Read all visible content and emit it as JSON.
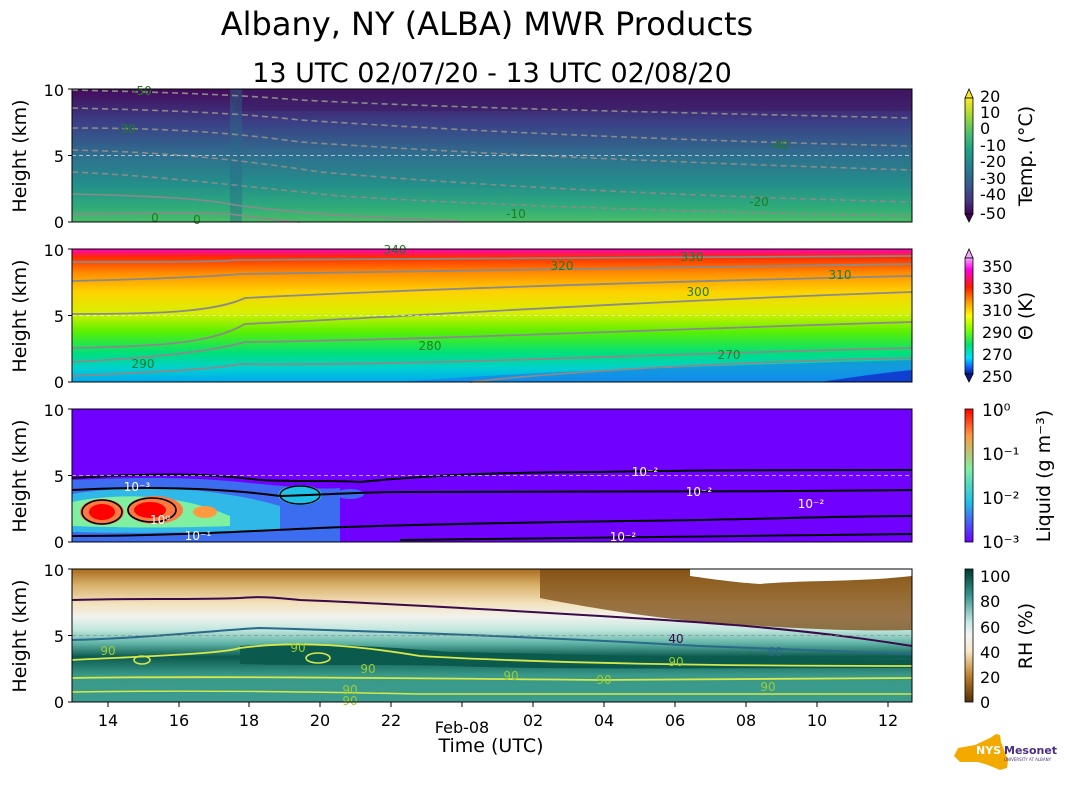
{
  "title": "Albany, NY (ALBA) MWR Products",
  "subtitle": "13 UTC 02/07/20 - 13 UTC 02/08/20",
  "xlabel": "Time (UTC)",
  "logo": {
    "name": "NYS Mesonet",
    "text_main": "NYS",
    "text_side": "Mesonet",
    "text_sub": "UNIVERSITY AT ALBANY",
    "color_state": "#f2a900",
    "color_text": "#4b2e83"
  },
  "chart_data": [
    {
      "type": "heatmap",
      "name": "temperature",
      "ylabel": "Height (km)",
      "xlim": [
        "13 UTC",
        "12:40 UTC"
      ],
      "ylim": [
        0,
        10
      ],
      "yticks": [
        "0",
        "5",
        "10"
      ],
      "xticks": [
        "14",
        "16",
        "18",
        "20",
        "22",
        "02",
        "04",
        "06",
        "08",
        "10",
        "12"
      ],
      "date_label": "Feb-08",
      "colorbar": {
        "label": "Temp. (°C)",
        "range": [
          -50,
          20
        ],
        "ticks": [
          "20",
          "10",
          "0",
          "-10",
          "-20",
          "-30",
          "-40",
          "-50"
        ],
        "colormap": "viridis"
      },
      "contour_labels": [
        "-50",
        "-30",
        "0",
        "0",
        "-10",
        "-20",
        "-40"
      ],
      "grid": "dashed line at 5 km"
    },
    {
      "type": "heatmap",
      "name": "potential_temperature",
      "ylabel": "Height (km)",
      "ylim": [
        0,
        10
      ],
      "yticks": [
        "0",
        "5",
        "10"
      ],
      "colorbar": {
        "label": "Θ (K)",
        "range": [
          250,
          360
        ],
        "ticks": [
          "350",
          "330",
          "310",
          "290",
          "270",
          "250"
        ],
        "colormap": "gist_ncar"
      },
      "contour_labels": [
        "290",
        "280",
        "270",
        "300",
        "310",
        "320",
        "330",
        "340"
      ],
      "grid": "dashed line at 5 km"
    },
    {
      "type": "heatmap",
      "name": "liquid_water",
      "ylabel": "Height (km)",
      "ylim": [
        0,
        10
      ],
      "yticks": [
        "0",
        "5",
        "10"
      ],
      "colorbar": {
        "label": "Liquid (g m⁻³)",
        "range": [
          0.001,
          1
        ],
        "scale": "log",
        "ticks": [
          "10⁰",
          "10⁻¹",
          "10⁻²",
          "10⁻³"
        ],
        "colormap": "rainbow"
      },
      "contour_labels": [
        "10⁻³",
        "10⁰",
        "10⁻¹",
        "10⁻²",
        "10⁻²",
        "10⁻²",
        "10⁻²"
      ],
      "grid": "dashed line at 5 km"
    },
    {
      "type": "heatmap",
      "name": "relative_humidity",
      "ylabel": "Height (km)",
      "ylim": [
        0,
        10
      ],
      "yticks": [
        "0",
        "5",
        "10"
      ],
      "colorbar": {
        "label": "RH (%)",
        "range": [
          0,
          105
        ],
        "ticks": [
          "100",
          "80",
          "60",
          "40",
          "20",
          "0"
        ],
        "colormap": "BrBG"
      },
      "contour_labels": [
        "90",
        "90",
        "90",
        "90",
        "90",
        "90",
        "90",
        "40",
        "60",
        "90",
        "90"
      ],
      "grid": "dashed line at 5 km"
    }
  ]
}
